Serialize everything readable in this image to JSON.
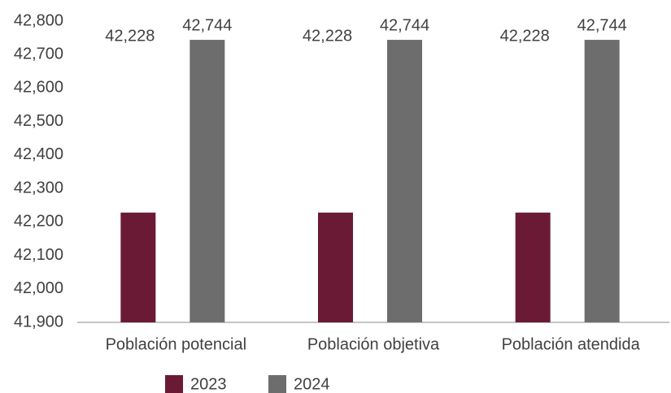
{
  "chart_data": {
    "type": "bar",
    "categories": [
      "Población potencial",
      "Población objetiva",
      "Población atendida"
    ],
    "series": [
      {
        "name": "2023",
        "color": "#6b1a35",
        "values": [
          42228,
          42228,
          42228
        ],
        "value_labels": [
          "42,228",
          "42,228",
          "42,228"
        ]
      },
      {
        "name": "2024",
        "color": "#6d6d6d",
        "values": [
          42744,
          42744,
          42744
        ],
        "value_labels": [
          "42,744",
          "42,744",
          "42,744"
        ]
      }
    ],
    "ylim": [
      41900,
      42800
    ],
    "yticks": [
      {
        "value": 41900,
        "label": "41,900"
      },
      {
        "value": 42000,
        "label": "42,000"
      },
      {
        "value": 42100,
        "label": "42,100"
      },
      {
        "value": 42200,
        "label": "42,200"
      },
      {
        "value": 42300,
        "label": "42,300"
      },
      {
        "value": 42400,
        "label": "42,400"
      },
      {
        "value": 42500,
        "label": "42,500"
      },
      {
        "value": 42600,
        "label": "42,600"
      },
      {
        "value": 42700,
        "label": "42,700"
      },
      {
        "value": 42800,
        "label": "42,800"
      }
    ],
    "grid": false,
    "legend": "bottom"
  }
}
